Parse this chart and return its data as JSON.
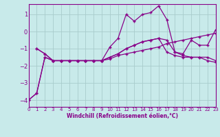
{
  "xlabel": "Windchill (Refroidissement éolien,°C)",
  "bg_color": "#c8eaea",
  "grid_color": "#a8cccc",
  "line_color": "#880088",
  "xlim": [
    0,
    23
  ],
  "ylim": [
    -4.4,
    1.6
  ],
  "yticks": [
    -4,
    -3,
    -2,
    -1,
    0,
    1
  ],
  "xticks": [
    0,
    1,
    2,
    3,
    4,
    5,
    6,
    7,
    8,
    9,
    10,
    11,
    12,
    13,
    14,
    15,
    16,
    17,
    18,
    19,
    20,
    21,
    22,
    23
  ],
  "line1_x": [
    0,
    1,
    2,
    3,
    4,
    5,
    6,
    7,
    8,
    9,
    10,
    11,
    12,
    13,
    14,
    15,
    16,
    17,
    18,
    19,
    20,
    21,
    22,
    23
  ],
  "line1_y": [
    -4.0,
    -3.6,
    -1.5,
    -1.7,
    -1.7,
    -1.7,
    -1.7,
    -1.7,
    -1.7,
    -1.7,
    -0.9,
    -0.4,
    1.0,
    0.6,
    1.0,
    1.1,
    1.5,
    0.7,
    -1.2,
    -1.3,
    -0.5,
    -0.8,
    -0.8,
    0.1
  ],
  "line2_x": [
    1,
    2,
    3,
    4,
    5,
    6,
    7,
    8,
    9,
    10,
    11,
    12,
    13,
    14,
    15,
    16,
    17,
    18,
    19,
    20,
    21,
    22,
    23
  ],
  "line2_y": [
    -1.0,
    -1.3,
    -1.7,
    -1.7,
    -1.7,
    -1.7,
    -1.7,
    -1.7,
    -1.7,
    -1.6,
    -1.4,
    -1.3,
    -1.2,
    -1.1,
    -1.0,
    -0.9,
    -0.7,
    -0.6,
    -0.5,
    -0.4,
    -0.3,
    -0.2,
    -0.1
  ],
  "line3_x": [
    1,
    2,
    3,
    4,
    5,
    6,
    7,
    8,
    9,
    10,
    11,
    12,
    13,
    14,
    15,
    16,
    17,
    18,
    19,
    20,
    21,
    22,
    23
  ],
  "line3_y": [
    -1.0,
    -1.3,
    -1.7,
    -1.7,
    -1.7,
    -1.7,
    -1.7,
    -1.7,
    -1.7,
    -1.5,
    -1.3,
    -1.0,
    -0.8,
    -0.6,
    -0.5,
    -0.4,
    -0.5,
    -1.2,
    -1.4,
    -1.5,
    -1.5,
    -1.5,
    -1.7
  ],
  "line4_x": [
    0,
    1,
    2,
    3,
    4,
    5,
    6,
    7,
    8,
    9,
    10,
    11,
    12,
    13,
    14,
    15,
    16,
    17,
    18,
    19,
    20,
    21,
    22,
    23
  ],
  "line4_y": [
    -4.0,
    -3.6,
    -1.5,
    -1.7,
    -1.7,
    -1.7,
    -1.7,
    -1.7,
    -1.7,
    -1.7,
    -1.5,
    -1.3,
    -1.0,
    -0.8,
    -0.6,
    -0.5,
    -0.4,
    -1.2,
    -1.4,
    -1.5,
    -1.5,
    -1.5,
    -1.7,
    -1.8
  ]
}
